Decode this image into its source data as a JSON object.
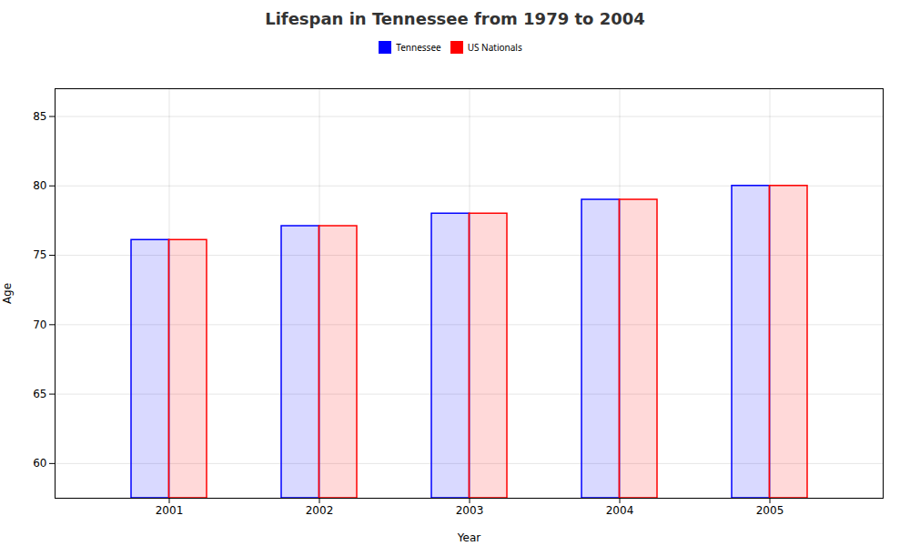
{
  "chart_data": {
    "type": "bar",
    "title": "Lifespan in Tennessee from 1979 to 2004",
    "xlabel": "Year",
    "ylabel": "Age",
    "categories": [
      "2001",
      "2002",
      "2003",
      "2004",
      "2005"
    ],
    "series": [
      {
        "name": "Tennessee",
        "color": "#0000ff",
        "values": [
          76.1,
          77.1,
          78.0,
          79.0,
          80.0
        ]
      },
      {
        "name": "US Nationals",
        "color": "#ff0000",
        "values": [
          76.1,
          77.1,
          78.0,
          79.0,
          80.0
        ]
      }
    ],
    "ylim": [
      57.5,
      87
    ],
    "yticks": [
      60,
      65,
      70,
      75,
      80,
      85
    ],
    "grid": true,
    "legend": "top"
  }
}
